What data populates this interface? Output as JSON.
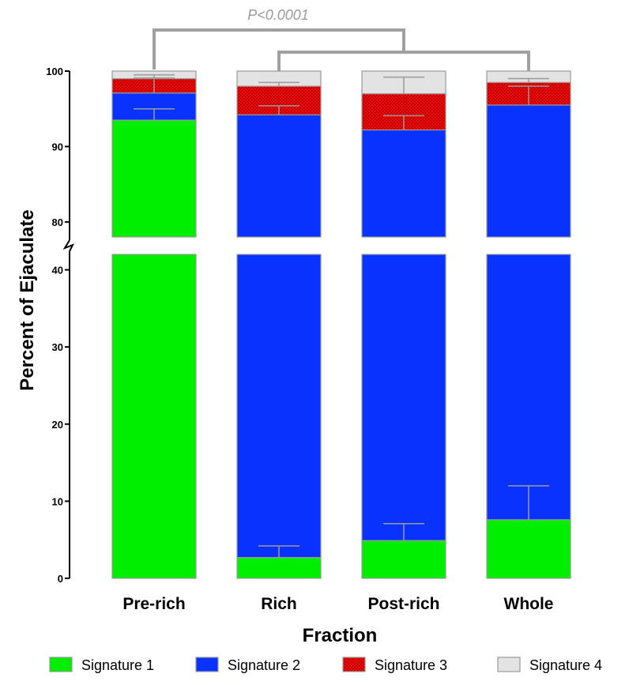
{
  "chart_data": {
    "type": "bar",
    "stacked": true,
    "xlabel": "Fraction",
    "ylabel": "Percent of Ejaculate",
    "broken_axis": {
      "lower_range": [
        0,
        42
      ],
      "upper_range": [
        78,
        100
      ]
    },
    "yticks": [
      "0",
      "10",
      "20",
      "30",
      "40",
      "80",
      "90",
      "100"
    ],
    "categories": [
      "Pre-rich",
      "Rich",
      "Post-rich",
      "Whole"
    ],
    "series": [
      {
        "name": "Signature 1",
        "color": "#00ee00",
        "values": [
          93.5,
          2.7,
          4.9,
          7.6
        ],
        "error": [
          1.5,
          1.5,
          2.2,
          4.4
        ]
      },
      {
        "name": "Signature 2",
        "color": "#0a32ff",
        "values": [
          3.6,
          91.5,
          87.3,
          87.9
        ],
        "error": [
          2.0,
          1.2,
          1.9,
          2.5
        ]
      },
      {
        "name": "Signature 3",
        "color": "#ff0000",
        "values": [
          1.9,
          3.8,
          4.8,
          3.0
        ],
        "error": [
          0.5,
          0.5,
          2.2,
          0.5
        ]
      },
      {
        "name": "Signature 4",
        "color": "#e3e3e3",
        "values": [
          1.0,
          2.0,
          3.0,
          1.5
        ],
        "error": [
          0,
          0,
          0,
          0
        ]
      }
    ],
    "significance": {
      "label": "P<0.0001"
    },
    "legend_position": "bottom"
  }
}
